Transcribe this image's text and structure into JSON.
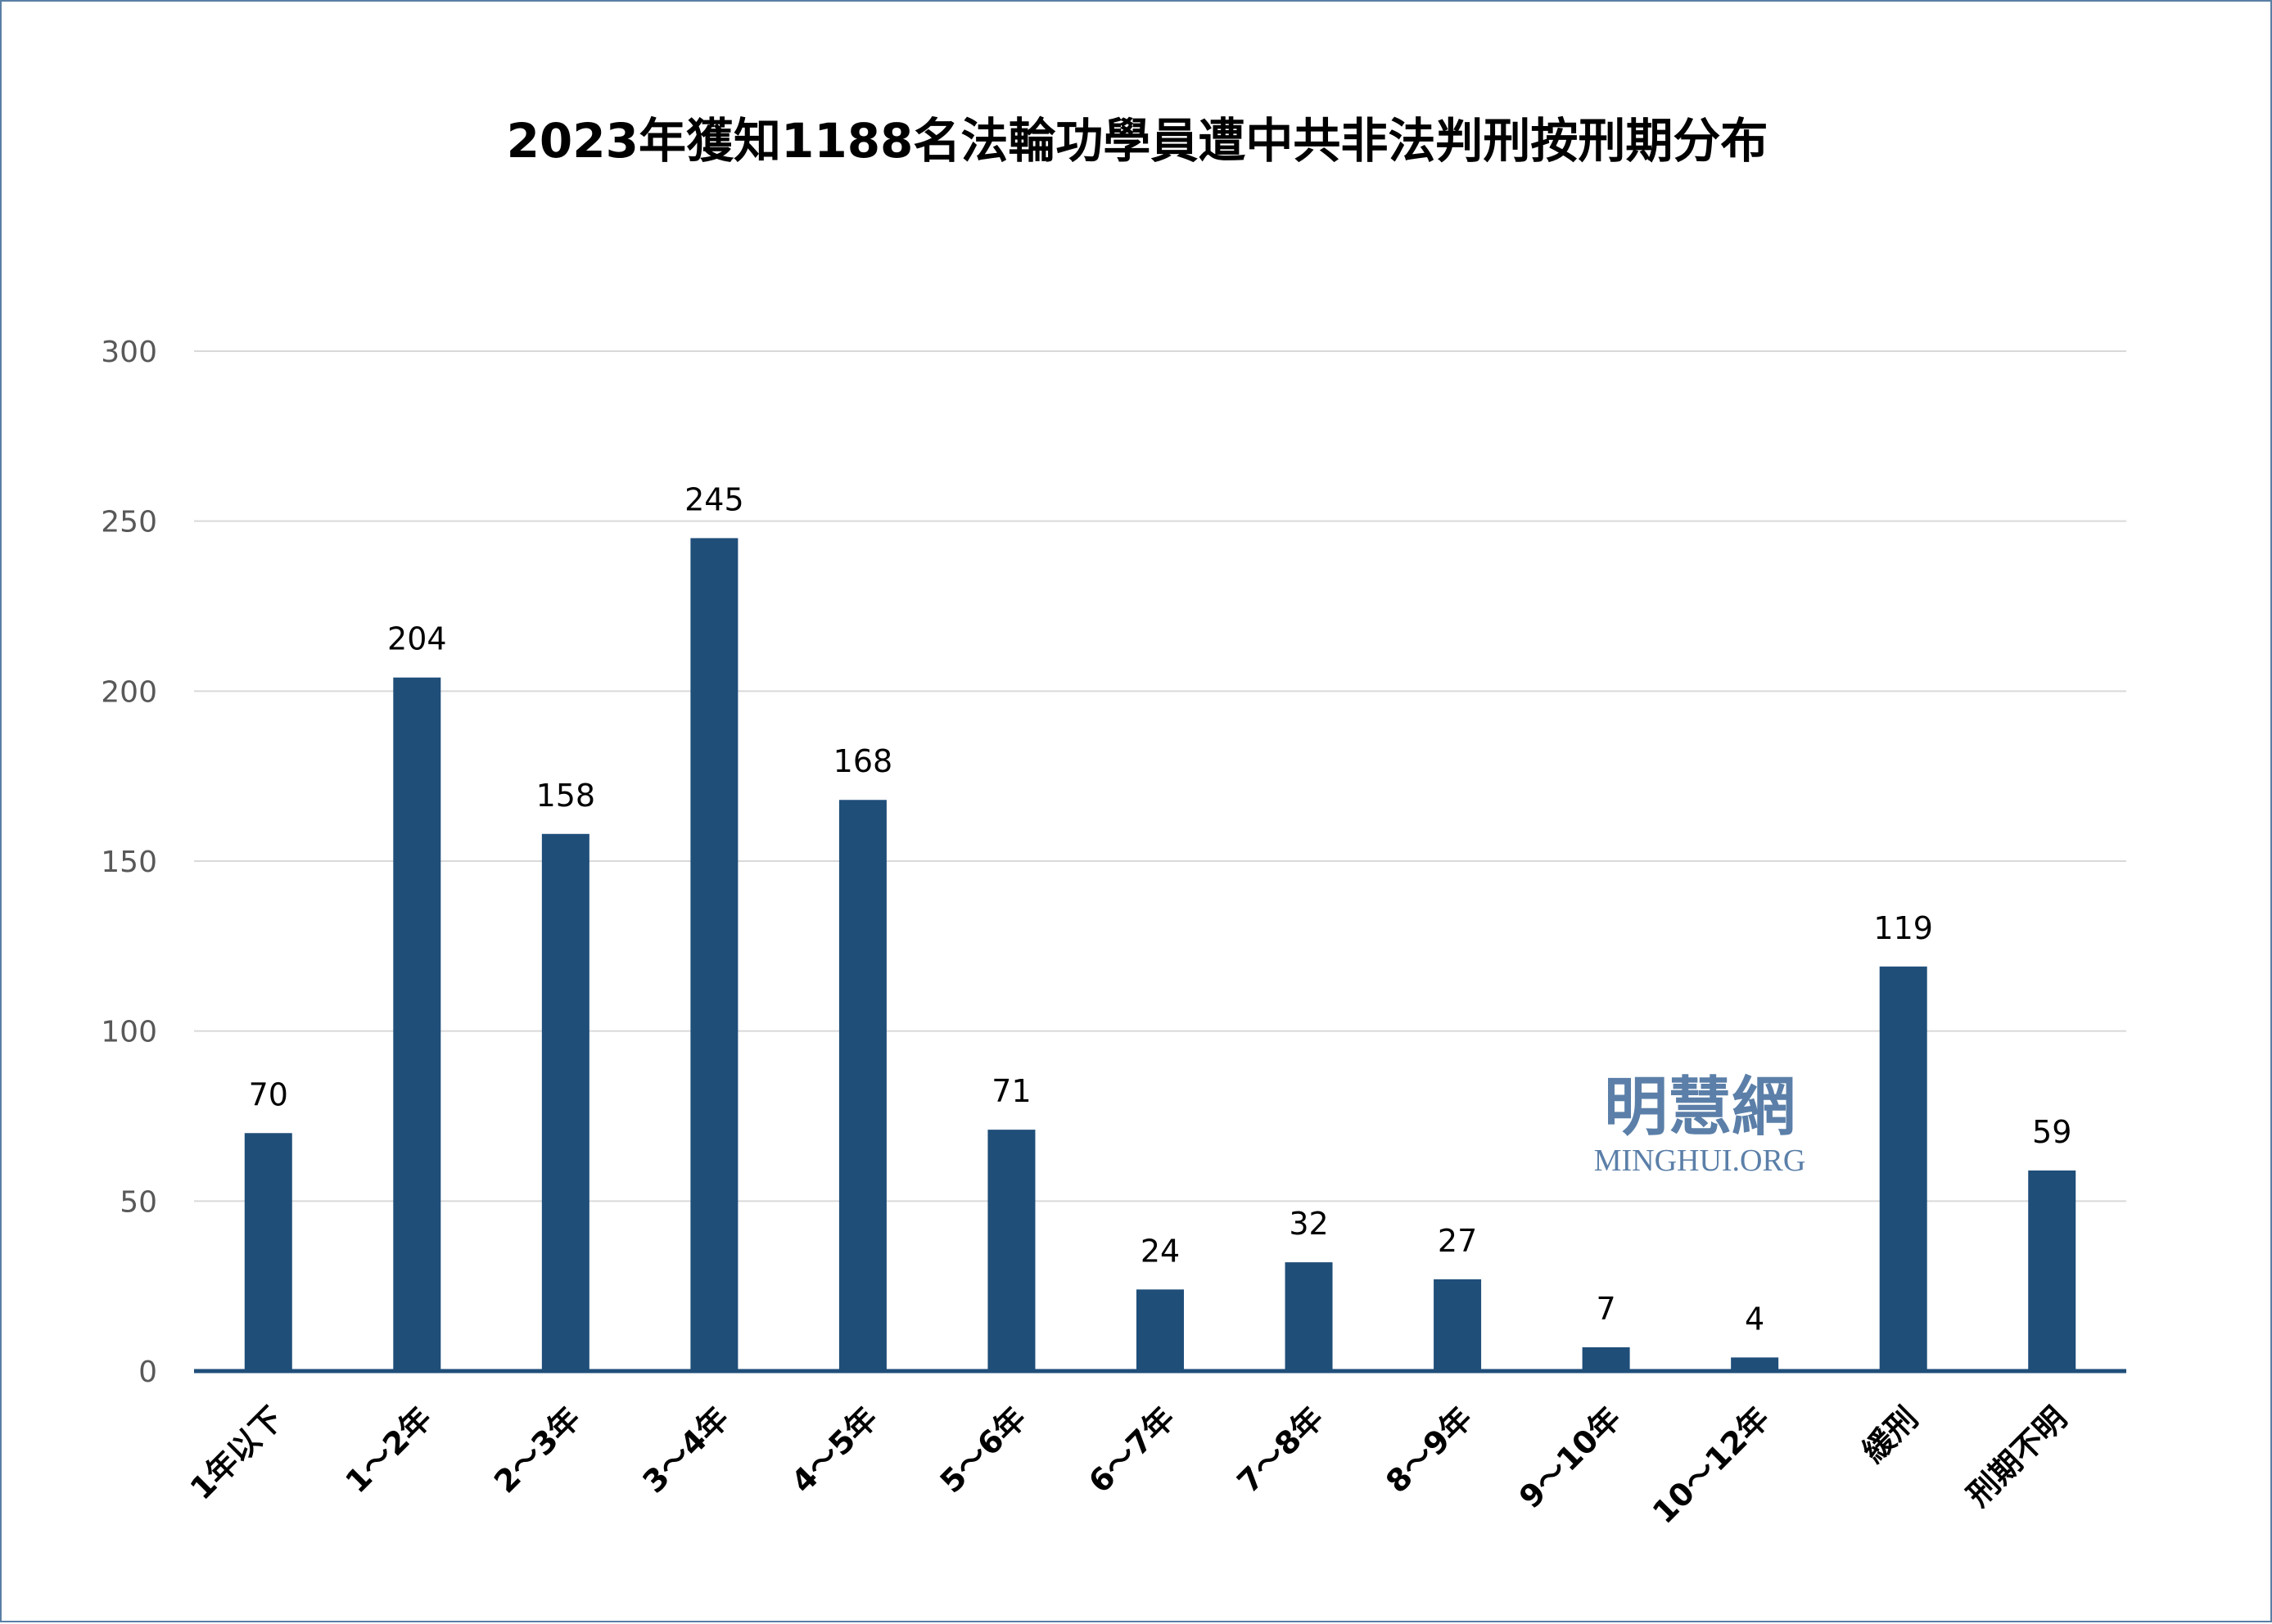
{
  "chart_data": {
    "type": "bar",
    "title": "2023年獲知1188名法輪功學員遭中共非法判刑按刑期分布",
    "categories": [
      "1年以下",
      "1～2年",
      "2～3年",
      "3～4年",
      "4～5年",
      "5～6年",
      "6～7年",
      "7～8年",
      "8～9年",
      "9～10年",
      "10～12年",
      "緩刑",
      "刑期不明"
    ],
    "values": [
      70,
      204,
      158,
      245,
      168,
      71,
      24,
      32,
      27,
      7,
      4,
      119,
      59
    ],
    "xlabel": "",
    "ylabel": "",
    "ylim": [
      0,
      300
    ],
    "yticks": [
      0,
      50,
      100,
      150,
      200,
      250,
      300
    ],
    "grid": true,
    "legend": "none",
    "bar_color": "#1f4e79",
    "data_labels": true
  },
  "watermark": {
    "chinese": "明慧網",
    "latin": "MINGHUI.ORG",
    "color": "#5b7fa8"
  }
}
